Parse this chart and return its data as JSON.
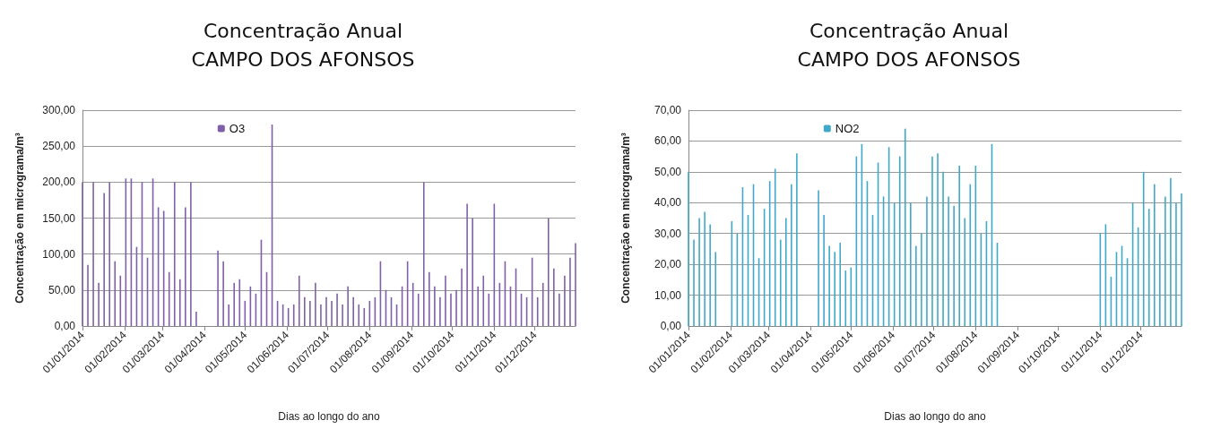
{
  "chart_data": [
    {
      "type": "bar",
      "title": "Concentração Anual",
      "subtitle": "CAMPO DOS AFONSOS",
      "xlabel": "Dias ao longo do ano",
      "ylabel": "Concentração em micrograma/m³",
      "legend": "top",
      "grid": "y",
      "x": [
        "2014-01-01",
        "2014-01-05",
        "2014-01-09",
        "2014-01-13",
        "2014-01-17",
        "2014-01-21",
        "2014-01-25",
        "2014-01-29",
        "2014-02-02",
        "2014-02-06",
        "2014-02-10",
        "2014-02-14",
        "2014-02-18",
        "2014-02-22",
        "2014-02-26",
        "2014-03-02",
        "2014-03-06",
        "2014-03-10",
        "2014-03-14",
        "2014-03-18",
        "2014-03-22",
        "2014-03-26",
        "2014-03-30",
        "2014-04-03",
        "2014-04-07",
        "2014-04-11",
        "2014-04-15",
        "2014-04-19",
        "2014-04-23",
        "2014-04-27",
        "2014-05-01",
        "2014-05-05",
        "2014-05-09",
        "2014-05-13",
        "2014-05-17",
        "2014-05-21",
        "2014-05-25",
        "2014-05-29",
        "2014-06-02",
        "2014-06-06",
        "2014-06-10",
        "2014-06-14",
        "2014-06-18",
        "2014-06-22",
        "2014-06-26",
        "2014-06-30",
        "2014-07-04",
        "2014-07-08",
        "2014-07-12",
        "2014-07-16",
        "2014-07-20",
        "2014-07-24",
        "2014-07-28",
        "2014-08-01",
        "2014-08-05",
        "2014-08-09",
        "2014-08-13",
        "2014-08-17",
        "2014-08-21",
        "2014-08-25",
        "2014-08-29",
        "2014-09-02",
        "2014-09-06",
        "2014-09-10",
        "2014-09-14",
        "2014-09-18",
        "2014-09-22",
        "2014-09-26",
        "2014-09-30",
        "2014-10-04",
        "2014-10-08",
        "2014-10-12",
        "2014-10-16",
        "2014-10-20",
        "2014-10-24",
        "2014-10-28",
        "2014-11-01",
        "2014-11-05",
        "2014-11-09",
        "2014-11-13",
        "2014-11-17",
        "2014-11-21",
        "2014-11-25",
        "2014-11-29",
        "2014-12-03",
        "2014-12-07",
        "2014-12-11",
        "2014-12-15",
        "2014-12-19",
        "2014-12-23",
        "2014-12-27",
        "2014-12-31"
      ],
      "series": [
        {
          "name": "O3",
          "color": "#7f60a8",
          "values": [
            200,
            85,
            200,
            60,
            185,
            200,
            90,
            70,
            205,
            205,
            110,
            200,
            95,
            205,
            165,
            160,
            75,
            200,
            65,
            165,
            200,
            20,
            null,
            null,
            null,
            105,
            90,
            30,
            60,
            65,
            35,
            55,
            45,
            120,
            75,
            280,
            35,
            30,
            25,
            30,
            70,
            40,
            35,
            60,
            30,
            40,
            35,
            45,
            30,
            55,
            40,
            30,
            25,
            35,
            40,
            90,
            50,
            40,
            30,
            55,
            90,
            60,
            45,
            200,
            75,
            55,
            40,
            70,
            45,
            50,
            80,
            170,
            150,
            55,
            70,
            45,
            170,
            60,
            90,
            55,
            80,
            45,
            40,
            95,
            40,
            60,
            150,
            80,
            45,
            70,
            95,
            115
          ]
        }
      ],
      "xlim": [
        "2014-01-01",
        "2014-12-31"
      ],
      "xticks": [
        {
          "value": "2014-01-01",
          "label": "01/01/2014"
        },
        {
          "value": "2014-02-01",
          "label": "01/02/2014"
        },
        {
          "value": "2014-03-01",
          "label": "01/03/2014"
        },
        {
          "value": "2014-04-01",
          "label": "01/04/2014"
        },
        {
          "value": "2014-05-01",
          "label": "01/05/2014"
        },
        {
          "value": "2014-06-01",
          "label": "01/06/2014"
        },
        {
          "value": "2014-07-01",
          "label": "01/07/2014"
        },
        {
          "value": "2014-08-01",
          "label": "01/08/2014"
        },
        {
          "value": "2014-09-01",
          "label": "01/09/2014"
        },
        {
          "value": "2014-10-01",
          "label": "01/10/2014"
        },
        {
          "value": "2014-11-01",
          "label": "01/11/2014"
        },
        {
          "value": "2014-12-01",
          "label": "01/12/2014"
        }
      ],
      "ylim": [
        0,
        300
      ],
      "yticks": [
        {
          "value": 0,
          "label": "0,00"
        },
        {
          "value": 50,
          "label": "50,00"
        },
        {
          "value": 100,
          "label": "100,00"
        },
        {
          "value": 150,
          "label": "150,00"
        },
        {
          "value": 200,
          "label": "200,00"
        },
        {
          "value": 250,
          "label": "250,00"
        },
        {
          "value": 300,
          "label": "300,00"
        }
      ]
    },
    {
      "type": "bar",
      "title": "Concentração Anual",
      "subtitle": "CAMPO DOS AFONSOS",
      "xlabel": "Dias ao longo do ano",
      "ylabel": "Concentração em micrograma/m³",
      "legend": "top",
      "grid": "y",
      "x": [
        "2014-01-01",
        "2014-01-05",
        "2014-01-09",
        "2014-01-13",
        "2014-01-17",
        "2014-01-21",
        "2014-01-25",
        "2014-01-29",
        "2014-02-02",
        "2014-02-06",
        "2014-02-10",
        "2014-02-14",
        "2014-02-18",
        "2014-02-22",
        "2014-02-26",
        "2014-03-02",
        "2014-03-06",
        "2014-03-10",
        "2014-03-14",
        "2014-03-18",
        "2014-03-22",
        "2014-03-26",
        "2014-03-30",
        "2014-04-03",
        "2014-04-07",
        "2014-04-11",
        "2014-04-15",
        "2014-04-19",
        "2014-04-23",
        "2014-04-27",
        "2014-05-01",
        "2014-05-05",
        "2014-05-09",
        "2014-05-13",
        "2014-05-17",
        "2014-05-21",
        "2014-05-25",
        "2014-05-29",
        "2014-06-02",
        "2014-06-06",
        "2014-06-10",
        "2014-06-14",
        "2014-06-18",
        "2014-06-22",
        "2014-06-26",
        "2014-06-30",
        "2014-07-04",
        "2014-07-08",
        "2014-07-12",
        "2014-07-16",
        "2014-07-20",
        "2014-07-24",
        "2014-07-28",
        "2014-08-01",
        "2014-08-05",
        "2014-08-09",
        "2014-08-13",
        "2014-08-17",
        "2014-08-21",
        "2014-08-25",
        "2014-08-29",
        "2014-09-02",
        "2014-09-06",
        "2014-09-10",
        "2014-09-14",
        "2014-09-18",
        "2014-09-22",
        "2014-09-26",
        "2014-09-30",
        "2014-10-04",
        "2014-10-08",
        "2014-10-12",
        "2014-10-16",
        "2014-10-20",
        "2014-10-24",
        "2014-10-28",
        "2014-11-01",
        "2014-11-05",
        "2014-11-09",
        "2014-11-13",
        "2014-11-17",
        "2014-11-21",
        "2014-11-25",
        "2014-11-29",
        "2014-12-03",
        "2014-12-07",
        "2014-12-11",
        "2014-12-15",
        "2014-12-19",
        "2014-12-23",
        "2014-12-27",
        "2014-12-31"
      ],
      "series": [
        {
          "name": "NO2",
          "color": "#3fa9c9",
          "values": [
            50,
            28,
            35,
            37,
            33,
            24,
            null,
            null,
            34,
            30,
            45,
            36,
            46,
            22,
            38,
            47,
            51,
            28,
            35,
            46,
            56,
            null,
            null,
            null,
            44,
            36,
            26,
            24,
            27,
            18,
            19,
            55,
            59,
            47,
            36,
            53,
            42,
            58,
            40,
            55,
            64,
            40,
            26,
            30,
            42,
            55,
            56,
            50,
            42,
            39,
            52,
            35,
            46,
            52,
            30,
            34,
            59,
            27,
            null,
            null,
            null,
            null,
            null,
            null,
            null,
            null,
            null,
            null,
            null,
            null,
            null,
            null,
            null,
            null,
            null,
            null,
            30,
            33,
            16,
            24,
            26,
            22,
            40,
            32,
            50,
            38,
            46,
            30,
            42,
            48,
            40,
            43
          ]
        }
      ],
      "xlim": [
        "2014-01-01",
        "2014-12-31"
      ],
      "xticks": [
        {
          "value": "2014-01-01",
          "label": "01/01/2014"
        },
        {
          "value": "2014-02-01",
          "label": "01/02/2014"
        },
        {
          "value": "2014-03-01",
          "label": "01/03/2014"
        },
        {
          "value": "2014-04-01",
          "label": "01/04/2014"
        },
        {
          "value": "2014-05-01",
          "label": "01/05/2014"
        },
        {
          "value": "2014-06-01",
          "label": "01/06/2014"
        },
        {
          "value": "2014-07-01",
          "label": "01/07/2014"
        },
        {
          "value": "2014-08-01",
          "label": "01/08/2014"
        },
        {
          "value": "2014-09-01",
          "label": "01/09/2014"
        },
        {
          "value": "2014-10-01",
          "label": "01/10/2014"
        },
        {
          "value": "2014-11-01",
          "label": "01/11/2014"
        },
        {
          "value": "2014-12-01",
          "label": "01/12/2014"
        }
      ],
      "ylim": [
        0,
        70
      ],
      "yticks": [
        {
          "value": 0,
          "label": "0,00"
        },
        {
          "value": 10,
          "label": "10,00"
        },
        {
          "value": 20,
          "label": "20,00"
        },
        {
          "value": 30,
          "label": "30,00"
        },
        {
          "value": 40,
          "label": "40,00"
        },
        {
          "value": 50,
          "label": "50,00"
        },
        {
          "value": 60,
          "label": "60,00"
        },
        {
          "value": 70,
          "label": "70,00"
        }
      ]
    }
  ]
}
